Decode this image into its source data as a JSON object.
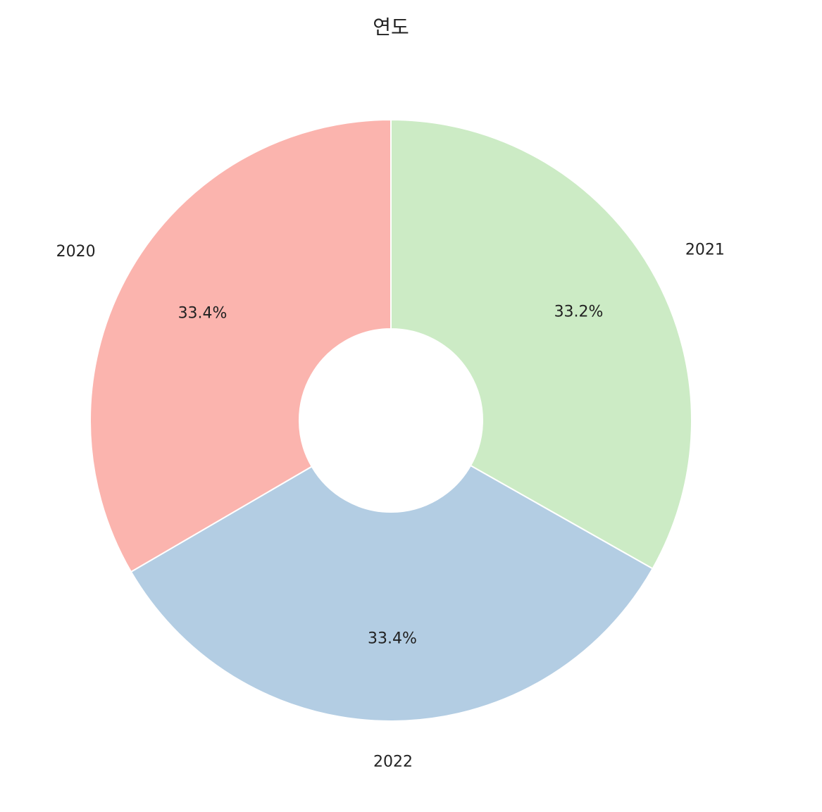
{
  "chart_data": {
    "type": "pie",
    "title": "연도",
    "categories": [
      "2020",
      "2021",
      "2022"
    ],
    "values": [
      33.4,
      33.2,
      33.4
    ],
    "percent_labels": [
      "33.4%",
      "33.2%",
      "33.4%"
    ],
    "colors": [
      "#fbb4ae",
      "#ccebc5",
      "#b3cde3"
    ],
    "edge_color": "#ffffff",
    "donut": true,
    "legend": false
  }
}
